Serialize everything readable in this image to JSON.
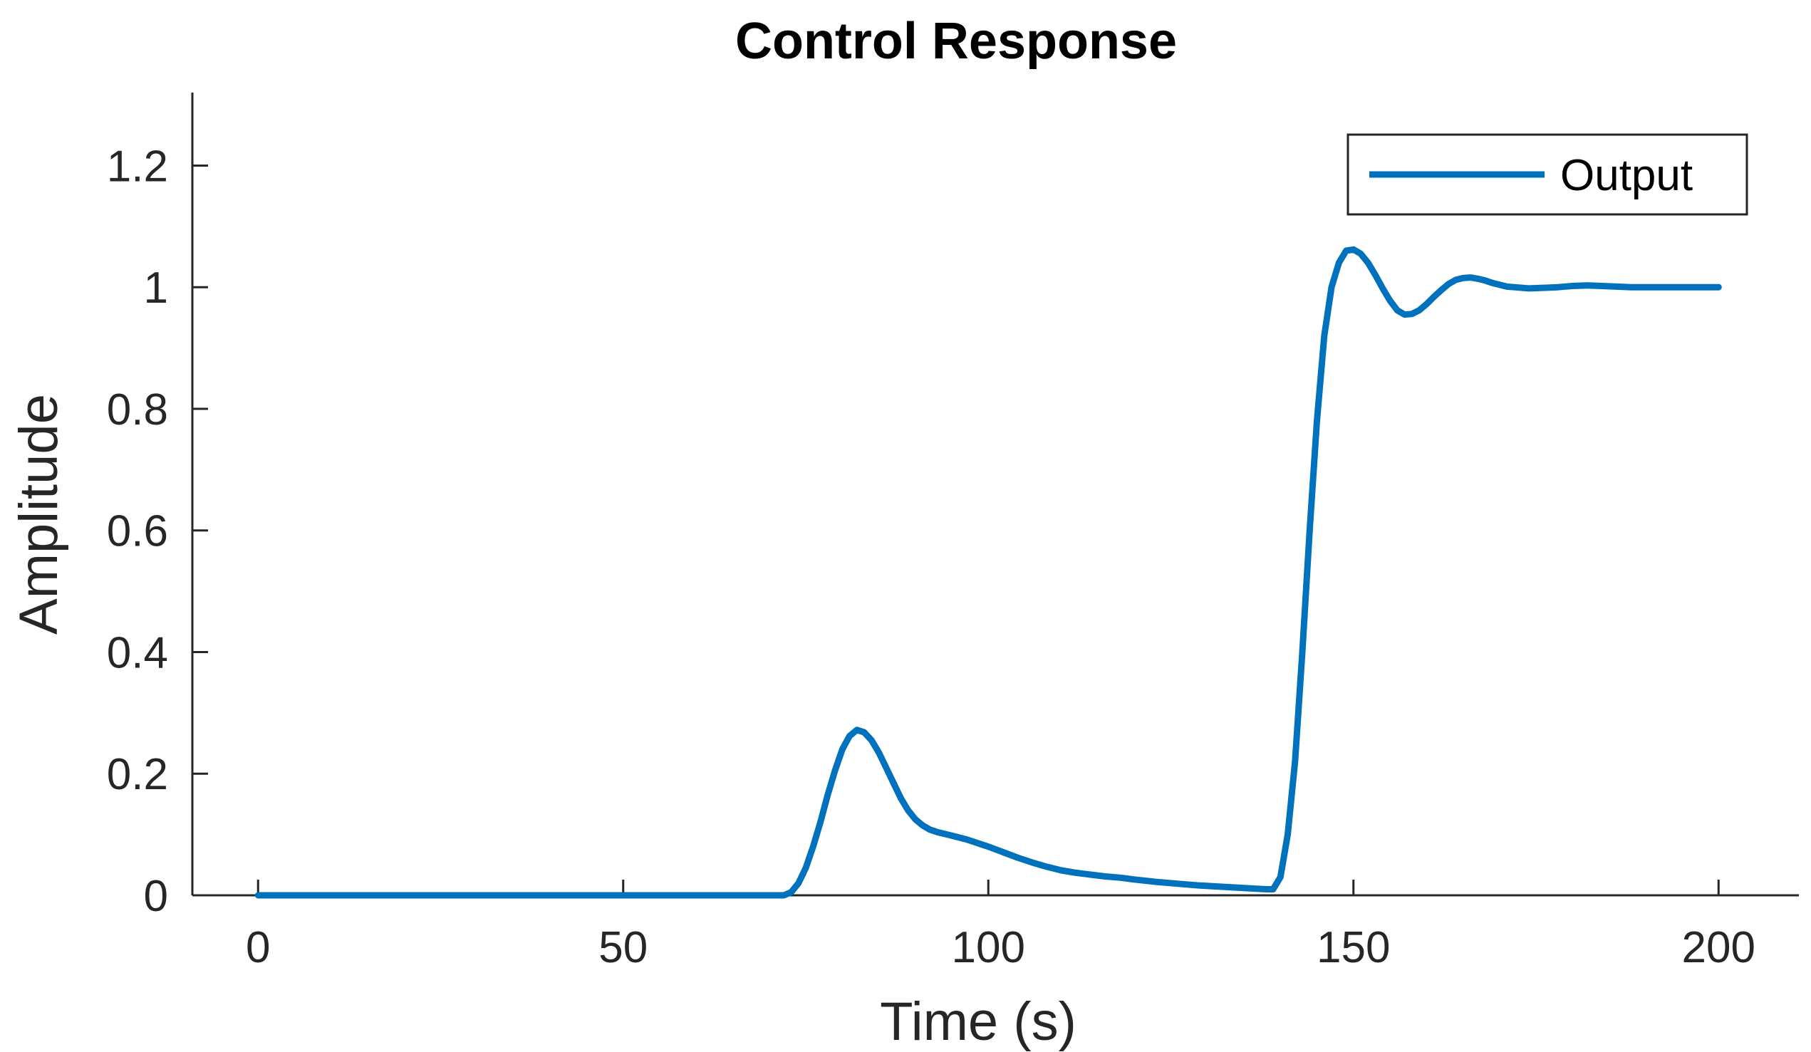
{
  "chart_data": {
    "type": "line",
    "title": "Control Response",
    "xlabel": "Time (s)",
    "ylabel": "Amplitude",
    "xlim": [
      -9,
      211
    ],
    "ylim": [
      0,
      1.32
    ],
    "xticks": [
      0,
      50,
      100,
      150,
      200
    ],
    "yticks": [
      0,
      0.2,
      0.4,
      0.6,
      0.8,
      1,
      1.2
    ],
    "xtick_labels": [
      "0",
      "50",
      "100",
      "150",
      "200"
    ],
    "ytick_labels": [
      "0",
      "0.2",
      "0.4",
      "0.6",
      "0.8",
      "1",
      "1.2"
    ],
    "grid": false,
    "legend": {
      "position": "top-right"
    },
    "series": [
      {
        "name": "Output",
        "color": "#0072BD",
        "x": [
          0,
          10,
          20,
          30,
          40,
          50,
          60,
          70,
          72,
          73,
          74,
          75,
          76,
          77,
          78,
          79,
          80,
          81,
          82,
          83,
          84,
          85,
          86,
          87,
          88,
          89,
          90,
          91,
          92,
          93,
          94,
          95,
          96,
          97,
          98,
          99,
          100,
          102,
          104,
          106,
          108,
          110,
          112,
          114,
          116,
          118,
          120,
          123,
          126,
          129,
          132,
          135,
          138,
          139,
          140,
          141,
          142,
          143,
          144,
          145,
          146,
          147,
          148,
          149,
          150,
          151,
          152,
          153,
          154,
          155,
          156,
          157,
          158,
          159,
          160,
          161,
          162,
          163,
          164,
          165,
          166,
          167,
          168,
          169,
          170,
          171,
          172,
          174,
          176,
          178,
          180,
          182,
          184,
          186,
          188,
          190,
          192,
          194,
          196,
          198,
          200
        ],
        "y": [
          0,
          0,
          0,
          0,
          0,
          0,
          0,
          0,
          0,
          0.005,
          0.02,
          0.045,
          0.08,
          0.12,
          0.165,
          0.205,
          0.24,
          0.262,
          0.272,
          0.268,
          0.255,
          0.235,
          0.21,
          0.185,
          0.16,
          0.14,
          0.125,
          0.115,
          0.108,
          0.104,
          0.101,
          0.098,
          0.095,
          0.092,
          0.088,
          0.084,
          0.08,
          0.071,
          0.062,
          0.054,
          0.047,
          0.041,
          0.037,
          0.034,
          0.031,
          0.029,
          0.026,
          0.022,
          0.019,
          0.016,
          0.014,
          0.012,
          0.01,
          0.01,
          0.03,
          0.1,
          0.22,
          0.4,
          0.6,
          0.78,
          0.92,
          1.0,
          1.04,
          1.06,
          1.062,
          1.055,
          1.04,
          1.02,
          0.998,
          0.978,
          0.962,
          0.955,
          0.956,
          0.962,
          0.972,
          0.984,
          0.995,
          1.005,
          1.012,
          1.015,
          1.016,
          1.014,
          1.011,
          1.007,
          1.004,
          1.001,
          1.0,
          0.998,
          0.999,
          1.0,
          1.002,
          1.003,
          1.002,
          1.001,
          1.0,
          1.0,
          1.0,
          1.0,
          1.0,
          1.0,
          1.0
        ]
      }
    ]
  }
}
